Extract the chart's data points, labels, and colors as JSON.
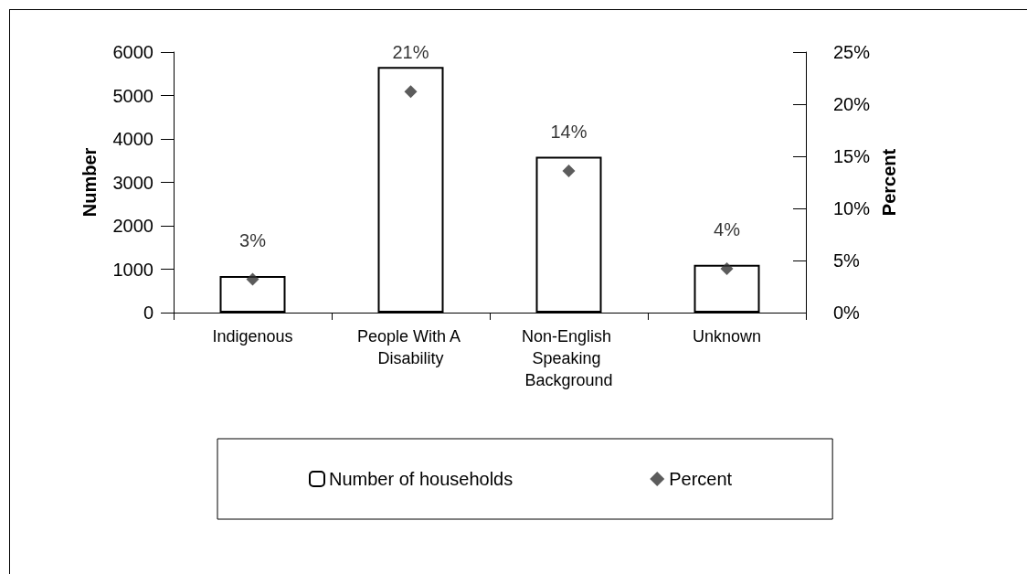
{
  "chart_data": {
    "type": "bar",
    "ylabel": "Number",
    "y2label": "Percent",
    "categories": [
      "Indigenous",
      "People With A Disability",
      "Non-English Speaking Background",
      "Unknown"
    ],
    "series": [
      {
        "name": "Number of households",
        "color": "#ffffff",
        "values": [
          840,
          5660,
          3590,
          1100
        ]
      },
      {
        "name": "Percent",
        "type": "scatter",
        "axis": "y2",
        "color": "#333333",
        "marker": "diamond",
        "values": [
          3.2,
          21.2,
          13.6,
          4.2
        ],
        "value_labels": [
          "3%",
          "21%",
          "14%",
          "4%"
        ]
      }
    ],
    "ylim": [
      0,
      6000
    ],
    "yticks": [
      0,
      1000,
      2000,
      3000,
      4000,
      5000,
      6000
    ],
    "y2lim": [
      0,
      25
    ],
    "y2ticks": [
      {
        "value": 0,
        "label": "0%"
      },
      {
        "value": 5,
        "label": "5%"
      },
      {
        "value": 10,
        "label": "10%"
      },
      {
        "value": 15,
        "label": "15%"
      },
      {
        "value": 20,
        "label": "20%"
      },
      {
        "value": 25,
        "label": "25%"
      }
    ],
    "grid": false,
    "legend": "bottom"
  }
}
